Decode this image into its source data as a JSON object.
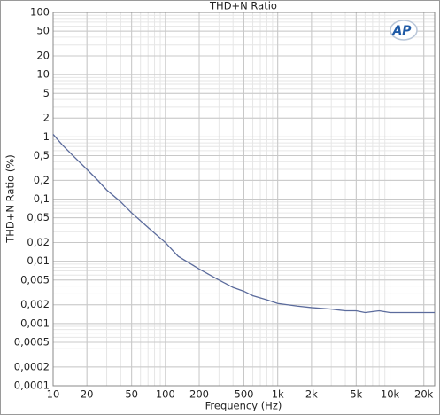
{
  "chart_data": {
    "type": "line",
    "title": "THD+N Ratio",
    "xlabel": "Frequency (Hz)",
    "ylabel": "THD+N Ratio (%)",
    "logo": "AP",
    "xscale": "log",
    "yscale": "log",
    "grid": true,
    "minor_grid": true,
    "xlim": [
      10,
      25000
    ],
    "ylim": [
      0.0001,
      100
    ],
    "xticks": [
      10,
      20,
      50,
      100,
      200,
      500,
      {
        "value": 1000,
        "label": "1k"
      },
      {
        "value": 2000,
        "label": "2k"
      },
      {
        "value": 5000,
        "label": "5k"
      },
      {
        "value": 10000,
        "label": "10k"
      },
      {
        "value": 20000,
        "label": "20k"
      }
    ],
    "yticks": [
      100,
      50,
      20,
      10,
      5,
      2,
      1,
      {
        "value": 0.5,
        "label": "0,5"
      },
      {
        "value": 0.2,
        "label": "0,2"
      },
      {
        "value": 0.1,
        "label": "0,1"
      },
      {
        "value": 0.05,
        "label": "0,05"
      },
      {
        "value": 0.02,
        "label": "0,02"
      },
      {
        "value": 0.01,
        "label": "0,01"
      },
      {
        "value": 0.005,
        "label": "0,005"
      },
      {
        "value": 0.002,
        "label": "0,002"
      },
      {
        "value": 0.001,
        "label": "0,001"
      },
      {
        "value": 0.0005,
        "label": "0,0005"
      },
      {
        "value": 0.0002,
        "label": "0,0002"
      },
      {
        "value": 0.0001,
        "label": "0,0001"
      }
    ],
    "x": [
      10,
      12,
      15,
      20,
      25,
      30,
      40,
      50,
      70,
      100,
      130,
      200,
      300,
      400,
      500,
      600,
      800,
      1000,
      1500,
      2000,
      3000,
      4000,
      5000,
      6000,
      8000,
      10000,
      15000,
      20000,
      25000
    ],
    "series": [
      {
        "name": "THD+N Ratio",
        "color": "#5b6b9c",
        "values": [
          1.1,
          0.75,
          0.5,
          0.3,
          0.2,
          0.14,
          0.09,
          0.06,
          0.035,
          0.02,
          0.012,
          0.0075,
          0.005,
          0.0038,
          0.0033,
          0.0028,
          0.0024,
          0.0021,
          0.0019,
          0.0018,
          0.0017,
          0.0016,
          0.0016,
          0.0015,
          0.0016,
          0.0015,
          0.0015,
          0.0015,
          0.0015
        ]
      }
    ]
  }
}
